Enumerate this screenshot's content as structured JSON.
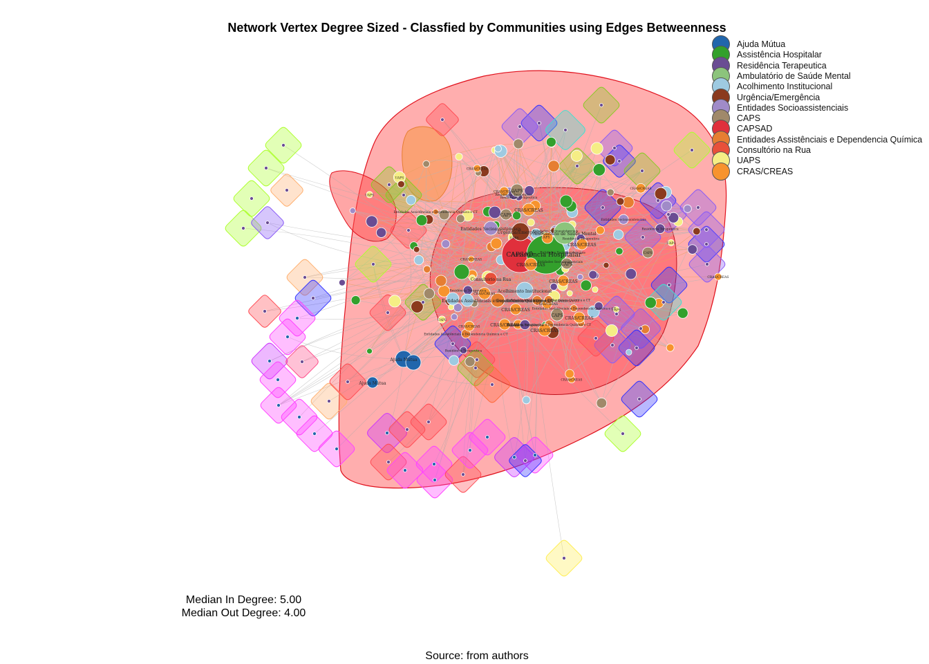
{
  "title": "Network Vertex Degree Sized - Classfied by Communities using Edges Betweenness",
  "legend": [
    {
      "label": "Ajuda Mútua",
      "color": "#2166ac"
    },
    {
      "label": "Assistência Hospitalar",
      "color": "#33a02c"
    },
    {
      "label": "Residência Terapeutica",
      "color": "#6a4c93"
    },
    {
      "label": "Ambulatório de Saúde Mental",
      "color": "#8cc47c"
    },
    {
      "label": "Acolhimento Institucional",
      "color": "#9ecae1"
    },
    {
      "label": "Urgência/Emergência",
      "color": "#8b3a1e"
    },
    {
      "label": "Entidades Socioassistenciais",
      "color": "#a08bc8"
    },
    {
      "label": "CAPS",
      "color": "#a0896a"
    },
    {
      "label": "CAPSAD",
      "color": "#e0303c"
    },
    {
      "label": "Entidades Assistênciais e Dependencia Química",
      "color": "#e67e32"
    },
    {
      "label": "Consultório na Rua",
      "color": "#e8503a"
    },
    {
      "label": "UAPS",
      "color": "#f5ee85"
    },
    {
      "label": "CRAS/CREAS",
      "color": "#f7932e"
    }
  ],
  "node_labels": {
    "capsad": "CAPSAD",
    "hospitalar": "Assistência Hospitalar",
    "ambulatorio": "Ambulatório de Saúde Mental",
    "urgencia": "Urgência/Emergência",
    "acolhimento": "Acolhimento Institucional",
    "socio": "Entidades Socioassistenciais",
    "entidades": "Entidades Assistênciais e Dependencia Química e CT",
    "consultorio": "Consultório na Rua",
    "ajuda": "Ajuda Mútua",
    "residencia": "Residência Terapeutica",
    "caps": "CAPS",
    "uaps": "UAPS",
    "cras": "CRAS/CREAS"
  },
  "stats": {
    "in_degree": "Median In Degree: 5.00",
    "out_degree": "Median Out Degree: 4.00"
  },
  "source": "Source: from authors"
}
